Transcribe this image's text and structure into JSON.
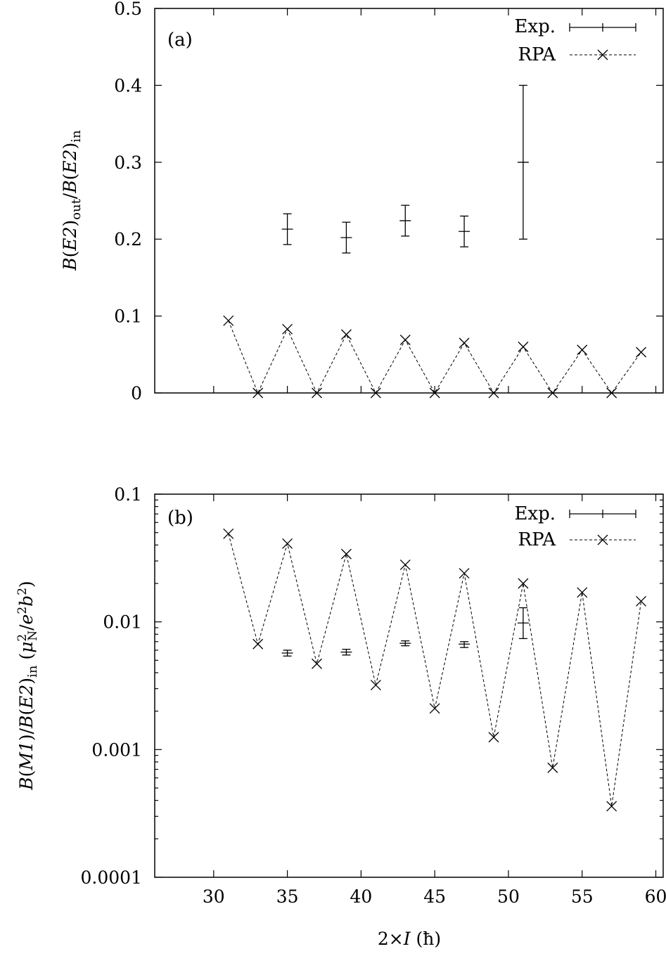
{
  "chart_data": [
    {
      "type": "scatter",
      "panel_label": "(a)",
      "ylabel": "B(E2)out/B(E2)in",
      "ylabel_parts": {
        "b": "B",
        "open": "(",
        "e2": "E2",
        "close": ")",
        "out": "out",
        "slash": "/",
        "in": "in"
      },
      "xlabel": "",
      "xlim": [
        26,
        60.5
      ],
      "ylim": [
        0,
        0.5
      ],
      "y_scale": "linear",
      "yticks": [
        0,
        0.1,
        0.2,
        0.3,
        0.4,
        0.5
      ],
      "ytick_labels": [
        "0",
        "0.1",
        "0.2",
        "0.3",
        "0.4",
        "0.5"
      ],
      "xticks": [
        30,
        35,
        40,
        45,
        50,
        55,
        60
      ],
      "legend": {
        "position": "top-right",
        "entries": [
          "Exp.",
          "RPA"
        ]
      },
      "series": [
        {
          "name": "Exp.",
          "style": "errorbar",
          "x": [
            35,
            39,
            43,
            47,
            51
          ],
          "y": [
            0.213,
            0.202,
            0.224,
            0.21,
            0.3
          ],
          "yerr": [
            0.02,
            0.02,
            0.02,
            0.02,
            0.1
          ]
        },
        {
          "name": "RPA",
          "style": "dashed-cross",
          "x": [
            31,
            33,
            35,
            37,
            39,
            41,
            43,
            45,
            47,
            49,
            51,
            53,
            55,
            57,
            59
          ],
          "y": [
            0.094,
            0,
            0.083,
            0,
            0.076,
            0,
            0.069,
            0,
            0.065,
            0,
            0.06,
            0,
            0.056,
            0,
            0.053
          ]
        }
      ]
    },
    {
      "type": "scatter",
      "panel_label": "(b)",
      "ylabel": "B(M1)/B(E2)in (μN²/e²b²)",
      "ylabel_parts": {
        "b1": "B",
        "open1": "(",
        "m1": "M1",
        "close1": ")/",
        "b2": "B",
        "open2": "(",
        "e2": "E2",
        "close2": ")",
        "in": "in",
        "unit_open": " (",
        "mu": "μ",
        "mu_sup": "2",
        "mu_sub": "N",
        "slash": "/",
        "e": "e",
        "e_sup": "2",
        "bb": "b",
        "b_sup": "2",
        "unit_close": ")"
      },
      "xlabel": "2×I (ħ)",
      "xlabel_parts": {
        "pre": "2×",
        "var": "I",
        "unit": " (ħ)"
      },
      "xlim": [
        26,
        60.5
      ],
      "ylim": [
        0.0001,
        0.1
      ],
      "y_scale": "log",
      "yticks": [
        0.0001,
        0.001,
        0.01,
        0.1
      ],
      "ytick_labels": [
        "0.0001",
        "0.001",
        "0.01",
        "0.1"
      ],
      "xticks": [
        30,
        35,
        40,
        45,
        50,
        55,
        60
      ],
      "xtick_labels": [
        "30",
        "35",
        "40",
        "45",
        "50",
        "55",
        "60"
      ],
      "legend": {
        "position": "top-right",
        "entries": [
          "Exp.",
          "RPA"
        ]
      },
      "series": [
        {
          "name": "Exp.",
          "style": "errorbar",
          "x": [
            35,
            39,
            43,
            47,
            51
          ],
          "y": [
            0.0057,
            0.0058,
            0.0068,
            0.0067,
            0.0098
          ],
          "ylow": [
            0.0054,
            0.0055,
            0.0065,
            0.0063,
            0.0074
          ],
          "yhigh": [
            0.006,
            0.0061,
            0.0071,
            0.007,
            0.0129
          ]
        },
        {
          "name": "RPA",
          "style": "dashed-cross",
          "x": [
            31,
            33,
            35,
            37,
            39,
            41,
            43,
            45,
            47,
            49,
            51,
            53,
            55,
            57,
            59
          ],
          "y": [
            0.049,
            0.0067,
            0.041,
            0.0047,
            0.034,
            0.0032,
            0.028,
            0.0021,
            0.024,
            0.00125,
            0.02,
            0.00072,
            0.017,
            0.00036,
            0.0145
          ]
        }
      ]
    }
  ]
}
